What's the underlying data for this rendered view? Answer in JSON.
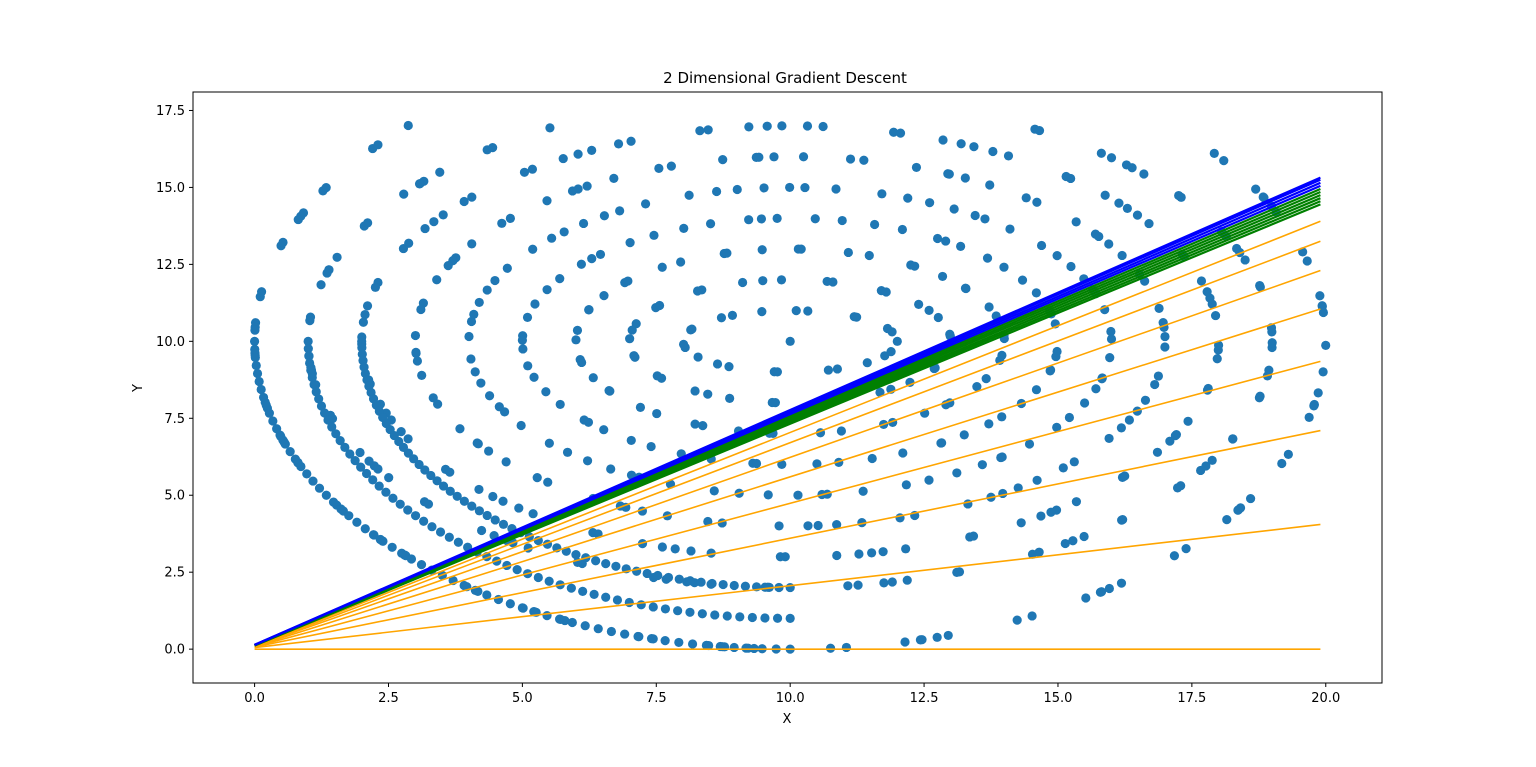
{
  "chart_data": {
    "type": "scatter",
    "title": "2 Dimensional Gradient Descent",
    "xlabel": "X",
    "ylabel": "Y",
    "xlim": [
      -1.15,
      21.05
    ],
    "ylim": [
      -1.1,
      18.1
    ],
    "xticks": [
      "0.0",
      "2.5",
      "5.0",
      "7.5",
      "10.0",
      "12.5",
      "15.0",
      "17.5",
      "20.0"
    ],
    "yticks": [
      "0.0",
      "2.5",
      "5.0",
      "7.5",
      "10.0",
      "12.5",
      "15.0",
      "17.5"
    ],
    "xtick_values": [
      0,
      2.5,
      5,
      7.5,
      10,
      12.5,
      15,
      17.5,
      20
    ],
    "ytick_values": [
      0,
      2.5,
      5,
      7.5,
      10,
      12.5,
      15,
      17.5
    ],
    "grid": false,
    "colors": {
      "points": "#1f77b4",
      "early_lines": "#ffa500",
      "mid_lines": "#008000",
      "final_lines": "#0000ff"
    },
    "scatter_spiral": {
      "center": [
        10,
        10
      ],
      "rings": [
        {
          "rx": 2.0,
          "ry": 1.0
        },
        {
          "rx": 3.0,
          "ry": 2.0
        },
        {
          "rx": 4.0,
          "ry": 3.0
        },
        {
          "rx": 5.0,
          "ry": 4.0
        },
        {
          "rx": 6.0,
          "ry": 5.0
        },
        {
          "rx": 7.0,
          "ry": 6.0
        },
        {
          "rx": 8.0,
          "ry": 7.0
        },
        {
          "rx": 9.0,
          "ry": 8.0
        },
        {
          "rx": 10.0,
          "ry": 10.0
        }
      ]
    },
    "fitted_lines": {
      "x_range": [
        0,
        19.9
      ],
      "orange": [
        {
          "y0": 0.0,
          "y1": 0.0
        },
        {
          "y0": 0.05,
          "y1": 4.05
        },
        {
          "y0": 0.07,
          "y1": 7.1
        },
        {
          "y0": 0.08,
          "y1": 9.35
        },
        {
          "y0": 0.09,
          "y1": 11.05
        },
        {
          "y0": 0.1,
          "y1": 12.3
        },
        {
          "y0": 0.1,
          "y1": 13.25
        },
        {
          "y0": 0.11,
          "y1": 13.9
        }
      ],
      "green": [
        {
          "y0": 0.12,
          "y1": 14.45
        },
        {
          "y0": 0.12,
          "y1": 14.55
        },
        {
          "y0": 0.12,
          "y1": 14.65
        },
        {
          "y0": 0.13,
          "y1": 14.75
        },
        {
          "y0": 0.13,
          "y1": 14.85
        },
        {
          "y0": 0.13,
          "y1": 14.95
        }
      ],
      "blue": [
        {
          "y0": 0.14,
          "y1": 15.05
        },
        {
          "y0": 0.14,
          "y1": 15.15
        },
        {
          "y0": 0.14,
          "y1": 15.25
        },
        {
          "y0": 0.14,
          "y1": 15.32
        }
      ]
    }
  }
}
